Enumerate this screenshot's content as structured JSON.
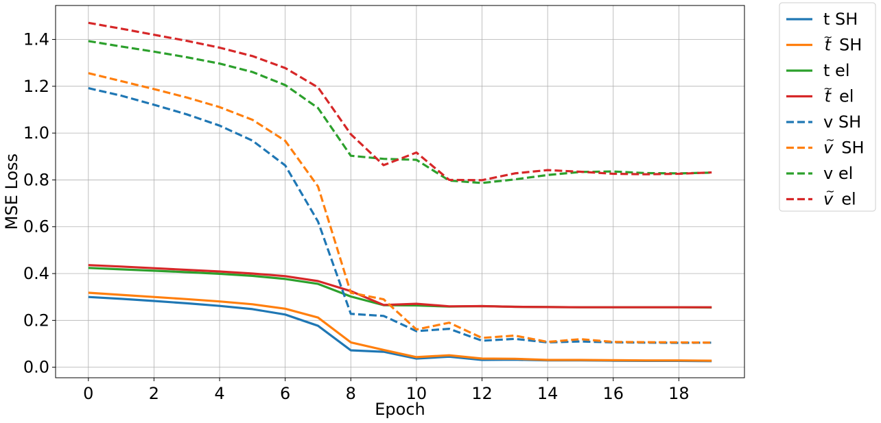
{
  "chart_data": {
    "type": "line",
    "title": "",
    "xlabel": "Epoch",
    "ylabel": "MSE Loss",
    "xlim": [
      -1,
      20
    ],
    "ylim": [
      -0.045,
      1.545
    ],
    "xticks": [
      0,
      2,
      4,
      6,
      8,
      10,
      12,
      14,
      16,
      18
    ],
    "xtick_labels": [
      "0",
      "2",
      "4",
      "6",
      "8",
      "10",
      "12",
      "14",
      "16",
      "18"
    ],
    "yticks": [
      0.0,
      0.2,
      0.4,
      0.6,
      0.8,
      1.0,
      1.2,
      1.4
    ],
    "ytick_labels": [
      "0.0",
      "0.2",
      "0.4",
      "0.6",
      "0.8",
      "1.0",
      "1.2",
      "1.4"
    ],
    "grid": true,
    "legend_position": "outside-top-right",
    "x": [
      0,
      1,
      2,
      3,
      4,
      5,
      6,
      7,
      8,
      9,
      10,
      11,
      12,
      13,
      14,
      15,
      16,
      17,
      18,
      19
    ],
    "series": [
      {
        "name": "t SH",
        "name_base": "t",
        "name_tilde": false,
        "name_suffix": " SH",
        "color": "#1f77b4",
        "dash": "solid",
        "values": [
          0.3,
          0.292,
          0.283,
          0.273,
          0.262,
          0.248,
          0.225,
          0.177,
          0.072,
          0.066,
          0.037,
          0.045,
          0.031,
          0.032,
          0.029,
          0.029,
          0.028,
          0.027,
          0.027,
          0.026
        ]
      },
      {
        "name": "t̃ SH",
        "name_base": "t",
        "name_tilde": true,
        "name_suffix": " SH",
        "color": "#ff7f0e",
        "dash": "solid",
        "values": [
          0.318,
          0.309,
          0.3,
          0.291,
          0.281,
          0.269,
          0.25,
          0.212,
          0.106,
          0.074,
          0.043,
          0.051,
          0.037,
          0.036,
          0.031,
          0.031,
          0.03,
          0.029,
          0.029,
          0.028
        ]
      },
      {
        "name": "t el",
        "name_base": "t",
        "name_tilde": false,
        "name_suffix": " el",
        "color": "#2ca02c",
        "dash": "solid",
        "values": [
          0.424,
          0.418,
          0.412,
          0.406,
          0.399,
          0.39,
          0.377,
          0.356,
          0.302,
          0.265,
          0.264,
          0.259,
          0.261,
          0.258,
          0.257,
          0.256,
          0.256,
          0.256,
          0.256,
          0.255
        ]
      },
      {
        "name": "t̃ el",
        "name_base": "t",
        "name_tilde": true,
        "name_suffix": " el",
        "color": "#d62728",
        "dash": "solid",
        "values": [
          0.436,
          0.43,
          0.423,
          0.416,
          0.409,
          0.4,
          0.389,
          0.368,
          0.325,
          0.266,
          0.271,
          0.26,
          0.261,
          0.258,
          0.257,
          0.256,
          0.256,
          0.256,
          0.256,
          0.256
        ]
      },
      {
        "name": "v SH",
        "name_base": "v",
        "name_tilde": false,
        "name_suffix": " SH",
        "color": "#1f77b4",
        "dash": "dashed",
        "values": [
          1.192,
          1.16,
          1.121,
          1.08,
          1.032,
          0.968,
          0.862,
          0.622,
          0.228,
          0.219,
          0.154,
          0.164,
          0.113,
          0.121,
          0.106,
          0.11,
          0.106,
          0.105,
          0.104,
          0.105
        ]
      },
      {
        "name": "ṽ SH",
        "name_base": "v",
        "name_tilde": true,
        "name_suffix": " SH",
        "color": "#ff7f0e",
        "dash": "dashed",
        "values": [
          1.256,
          1.222,
          1.188,
          1.152,
          1.111,
          1.057,
          0.967,
          0.772,
          0.318,
          0.29,
          0.161,
          0.19,
          0.125,
          0.135,
          0.108,
          0.12,
          0.108,
          0.107,
          0.106,
          0.105
        ]
      },
      {
        "name": "v el",
        "name_base": "v",
        "name_tilde": false,
        "name_suffix": " el",
        "color": "#2ca02c",
        "dash": "dashed",
        "values": [
          1.393,
          1.37,
          1.348,
          1.324,
          1.297,
          1.261,
          1.205,
          1.107,
          0.903,
          0.89,
          0.886,
          0.797,
          0.787,
          0.802,
          0.821,
          0.834,
          0.836,
          0.829,
          0.828,
          0.831
        ]
      },
      {
        "name": "ṽ el",
        "name_base": "v",
        "name_tilde": true,
        "name_suffix": " el",
        "color": "#d62728",
        "dash": "dashed",
        "values": [
          1.471,
          1.446,
          1.42,
          1.394,
          1.365,
          1.329,
          1.278,
          1.195,
          0.995,
          0.863,
          0.917,
          0.8,
          0.799,
          0.828,
          0.842,
          0.835,
          0.826,
          0.824,
          0.826,
          0.832
        ]
      }
    ]
  }
}
